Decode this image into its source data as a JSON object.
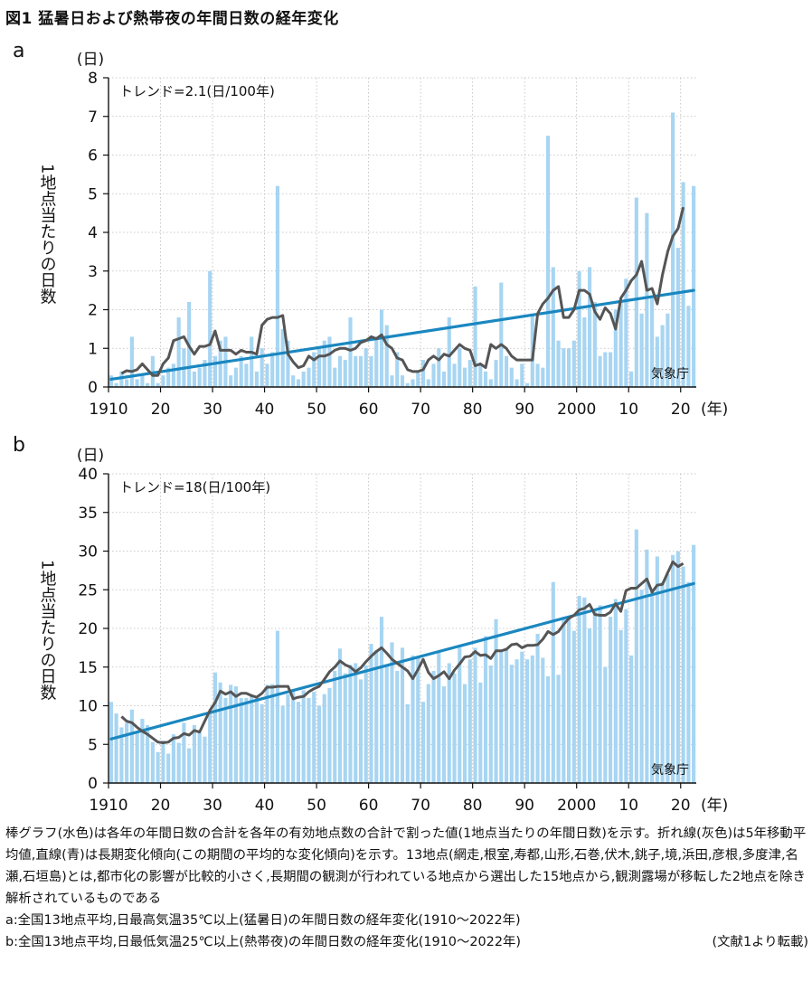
{
  "figure": {
    "title": "図1 猛暑日および熱帯夜の年間日数の経年変化"
  },
  "charts": {
    "common": {
      "bar_color": "#a7d5f2",
      "ma_color": "#555555",
      "trend_color": "#1a87c0",
      "ylabel": "1地点当たりの日数",
      "yunit": "(日)",
      "xunit": "(年)",
      "source_label": "気象庁",
      "x_tick_labels": [
        "1910",
        "20",
        "30",
        "40",
        "50",
        "60",
        "70",
        "80",
        "90",
        "2000",
        "10",
        "20"
      ]
    }
  },
  "chart_data": [
    {
      "panel": "a",
      "type": "bar",
      "trend_label": "トレンド=2.1(日/100年)",
      "xlim": [
        1910,
        2023
      ],
      "ylim": [
        0,
        8
      ],
      "yticks": [
        "0",
        "1",
        "2",
        "3",
        "4",
        "5",
        "6",
        "7",
        "8"
      ],
      "x": [
        1910,
        1911,
        1912,
        1913,
        1914,
        1915,
        1916,
        1917,
        1918,
        1919,
        1920,
        1921,
        1922,
        1923,
        1924,
        1925,
        1926,
        1927,
        1928,
        1929,
        1930,
        1931,
        1932,
        1933,
        1934,
        1935,
        1936,
        1937,
        1938,
        1939,
        1940,
        1941,
        1942,
        1943,
        1944,
        1945,
        1946,
        1947,
        1948,
        1949,
        1950,
        1951,
        1952,
        1953,
        1954,
        1955,
        1956,
        1957,
        1958,
        1959,
        1960,
        1961,
        1962,
        1963,
        1964,
        1965,
        1966,
        1967,
        1968,
        1969,
        1970,
        1971,
        1972,
        1973,
        1974,
        1975,
        1976,
        1977,
        1978,
        1979,
        1980,
        1981,
        1982,
        1983,
        1984,
        1985,
        1986,
        1987,
        1988,
        1989,
        1990,
        1991,
        1992,
        1993,
        1994,
        1995,
        1996,
        1997,
        1998,
        1999,
        2000,
        2001,
        2002,
        2003,
        2004,
        2005,
        2006,
        2007,
        2008,
        2009,
        2010,
        2011,
        2012,
        2013,
        2014,
        2015,
        2016,
        2017,
        2018,
        2019,
        2020,
        2021,
        2022
      ],
      "values": [
        0.3,
        0.1,
        0.4,
        0.2,
        1.3,
        0.2,
        0.3,
        0.1,
        0.8,
        0.1,
        0.3,
        0.5,
        0.6,
        1.8,
        1.0,
        2.2,
        0.4,
        0.5,
        0.7,
        3.0,
        0.8,
        1.2,
        1.3,
        0.3,
        0.5,
        0.8,
        0.6,
        1.3,
        0.4,
        1.0,
        0.6,
        0.9,
        5.2,
        1.5,
        1.2,
        0.3,
        0.2,
        0.4,
        0.5,
        0.9,
        1.0,
        1.2,
        1.3,
        0.5,
        0.8,
        0.7,
        1.8,
        0.8,
        0.8,
        1.0,
        0.8,
        1.3,
        2.0,
        1.6,
        0.3,
        0.9,
        0.3,
        0.1,
        0.2,
        0.4,
        0.7,
        0.2,
        0.6,
        1.0,
        0.4,
        1.8,
        0.6,
        1.0,
        0.5,
        0.7,
        2.6,
        0.6,
        0.4,
        0.2,
        0.7,
        2.7,
        0.8,
        0.5,
        0.2,
        0.6,
        0.1,
        1.9,
        0.6,
        0.5,
        6.5,
        3.1,
        1.2,
        1.0,
        1.0,
        1.2,
        3.0,
        1.8,
        3.1,
        2.2,
        0.8,
        0.9,
        0.9,
        2.0,
        2.2,
        2.8,
        0.4,
        4.9,
        1.9,
        4.5,
        2.3,
        1.3,
        1.6,
        1.9,
        7.1,
        3.6,
        5.3,
        2.1,
        5.2
      ],
      "ma_x": [
        1912,
        1913,
        1914,
        1915,
        1916,
        1917,
        1918,
        1919,
        1920,
        1921,
        1922,
        1923,
        1924,
        1925,
        1926,
        1927,
        1928,
        1929,
        1930,
        1931,
        1932,
        1933,
        1934,
        1935,
        1936,
        1937,
        1938,
        1939,
        1940,
        1941,
        1942,
        1943,
        1944,
        1945,
        1946,
        1947,
        1948,
        1949,
        1950,
        1951,
        1952,
        1953,
        1954,
        1955,
        1956,
        1957,
        1958,
        1959,
        1960,
        1961,
        1962,
        1963,
        1964,
        1965,
        1966,
        1967,
        1968,
        1969,
        1970,
        1971,
        1972,
        1973,
        1974,
        1975,
        1976,
        1977,
        1978,
        1979,
        1980,
        1981,
        1982,
        1983,
        1984,
        1985,
        1986,
        1987,
        1988,
        1989,
        1990,
        1991,
        1992,
        1993,
        1994,
        1995,
        1996,
        1997,
        1998,
        1999,
        2000,
        2001,
        2002,
        2003,
        2004,
        2005,
        2006,
        2007,
        2008,
        2009,
        2010,
        2011,
        2012,
        2013,
        2014,
        2015,
        2016,
        2017,
        2018,
        2019,
        2020
      ],
      "ma_values": [
        0.35,
        0.42,
        0.4,
        0.45,
        0.6,
        0.45,
        0.3,
        0.3,
        0.6,
        0.75,
        1.2,
        1.25,
        1.3,
        1.05,
        0.85,
        1.05,
        1.05,
        1.1,
        1.45,
        0.95,
        0.95,
        0.95,
        0.85,
        0.95,
        0.9,
        0.9,
        0.85,
        1.6,
        1.75,
        1.8,
        1.8,
        1.85,
        0.85,
        0.65,
        0.5,
        0.55,
        0.8,
        0.7,
        0.8,
        0.8,
        0.85,
        0.95,
        1.0,
        1.0,
        0.95,
        1.0,
        1.15,
        1.2,
        1.3,
        1.25,
        1.35,
        1.1,
        1.0,
        0.75,
        0.7,
        0.45,
        0.4,
        0.4,
        0.45,
        0.7,
        0.8,
        0.7,
        0.85,
        0.8,
        0.95,
        1.1,
        1.0,
        0.95,
        0.55,
        0.6,
        0.5,
        1.1,
        1.0,
        1.1,
        1.0,
        0.8,
        0.7,
        0.7,
        0.7,
        0.7,
        1.9,
        2.15,
        2.3,
        2.5,
        2.6,
        1.8,
        1.8,
        2.0,
        2.5,
        2.5,
        2.4,
        1.95,
        1.75,
        2.05,
        1.9,
        1.5,
        2.3,
        2.5,
        2.75,
        2.9,
        3.25,
        2.5,
        2.55,
        2.15,
        2.9,
        3.5,
        3.9,
        4.1,
        4.65
      ],
      "trend": {
        "x": [
          1910,
          2022
        ],
        "y": [
          0.2,
          2.5
        ]
      }
    },
    {
      "panel": "b",
      "type": "bar",
      "trend_label": "トレンド=18(日/100年)",
      "xlim": [
        1910,
        2023
      ],
      "ylim": [
        0,
        40
      ],
      "yticks": [
        "0",
        "5",
        "10",
        "15",
        "20",
        "25",
        "30",
        "35",
        "40"
      ],
      "x": [
        1910,
        1911,
        1912,
        1913,
        1914,
        1915,
        1916,
        1917,
        1918,
        1919,
        1920,
        1921,
        1922,
        1923,
        1924,
        1925,
        1926,
        1927,
        1928,
        1929,
        1930,
        1931,
        1932,
        1933,
        1934,
        1935,
        1936,
        1937,
        1938,
        1939,
        1940,
        1941,
        1942,
        1943,
        1944,
        1945,
        1946,
        1947,
        1948,
        1949,
        1950,
        1951,
        1952,
        1953,
        1954,
        1955,
        1956,
        1957,
        1958,
        1959,
        1960,
        1961,
        1962,
        1963,
        1964,
        1965,
        1966,
        1967,
        1968,
        1969,
        1970,
        1971,
        1972,
        1973,
        1974,
        1975,
        1976,
        1977,
        1978,
        1979,
        1980,
        1981,
        1982,
        1983,
        1984,
        1985,
        1986,
        1987,
        1988,
        1989,
        1990,
        1991,
        1992,
        1993,
        1994,
        1995,
        1996,
        1997,
        1998,
        1999,
        2000,
        2001,
        2002,
        2003,
        2004,
        2005,
        2006,
        2007,
        2008,
        2009,
        2010,
        2011,
        2012,
        2013,
        2014,
        2015,
        2016,
        2017,
        2018,
        2019,
        2020,
        2021,
        2022
      ],
      "values": [
        10.5,
        9.0,
        7.2,
        7.8,
        9.5,
        6.5,
        8.3,
        7.5,
        5.3,
        4.0,
        5.5,
        3.8,
        6.3,
        5.2,
        7.8,
        4.5,
        7.5,
        6.5,
        6.0,
        9.0,
        14.3,
        13.0,
        11.0,
        12.7,
        12.5,
        11.0,
        11.0,
        11.5,
        11.0,
        10.2,
        12.7,
        12.8,
        19.7,
        10.0,
        11.5,
        11.8,
        10.5,
        12.0,
        11.0,
        11.8,
        10.0,
        11.5,
        12.3,
        14.5,
        17.4,
        14.2,
        15.3,
        15.5,
        13.4,
        15.2,
        18.0,
        17.2,
        21.5,
        15.3,
        18.2,
        14.5,
        17.5,
        10.2,
        16.5,
        16.2,
        10.5,
        12.8,
        14.5,
        17.0,
        12.5,
        15.5,
        14.2,
        17.5,
        12.8,
        16.0,
        17.5,
        13.0,
        19.0,
        15.2,
        21.2,
        17.0,
        17.5,
        15.3,
        16.0,
        17.0,
        16.0,
        16.5,
        19.3,
        16.2,
        13.8,
        26.0,
        14.0,
        21.5,
        21.5,
        19.7,
        24.2,
        24.0,
        20.0,
        22.5,
        23.0,
        15.0,
        21.5,
        23.8,
        19.8,
        22.5,
        16.5,
        32.8,
        25.0,
        30.2,
        25.0,
        29.3,
        26.0,
        27.0,
        29.5,
        30.0,
        28.0,
        26.0,
        30.8
      ],
      "ma_x": [
        1912,
        1913,
        1914,
        1915,
        1916,
        1917,
        1918,
        1919,
        1920,
        1921,
        1922,
        1923,
        1924,
        1925,
        1926,
        1927,
        1928,
        1929,
        1930,
        1931,
        1932,
        1933,
        1934,
        1935,
        1936,
        1937,
        1938,
        1939,
        1940,
        1941,
        1942,
        1943,
        1944,
        1945,
        1946,
        1947,
        1948,
        1949,
        1950,
        1951,
        1952,
        1953,
        1954,
        1955,
        1956,
        1957,
        1958,
        1959,
        1960,
        1961,
        1962,
        1963,
        1964,
        1965,
        1966,
        1967,
        1968,
        1969,
        1970,
        1971,
        1972,
        1973,
        1974,
        1975,
        1976,
        1977,
        1978,
        1979,
        1980,
        1981,
        1982,
        1983,
        1984,
        1985,
        1986,
        1987,
        1988,
        1989,
        1990,
        1991,
        1992,
        1993,
        1994,
        1995,
        1996,
        1997,
        1998,
        1999,
        2000,
        2001,
        2002,
        2003,
        2004,
        2005,
        2006,
        2007,
        2008,
        2009,
        2010,
        2011,
        2012,
        2013,
        2014,
        2015,
        2016,
        2017,
        2018,
        2019,
        2020
      ],
      "ma_values": [
        8.6,
        8.0,
        7.8,
        7.2,
        6.7,
        6.3,
        5.8,
        5.3,
        5.2,
        5.3,
        5.8,
        5.9,
        6.4,
        6.2,
        6.8,
        6.6,
        8.0,
        9.4,
        10.4,
        11.9,
        11.5,
        11.8,
        11.2,
        11.6,
        11.6,
        11.3,
        11.1,
        11.6,
        12.4,
        12.4,
        12.5,
        12.5,
        12.5,
        10.9,
        11.1,
        11.2,
        11.8,
        12.2,
        12.5,
        13.4,
        14.4,
        15.0,
        15.8,
        15.3,
        15.0,
        14.4,
        14.9,
        15.7,
        16.4,
        17.0,
        17.5,
        16.8,
        16.0,
        15.5,
        15.0,
        14.5,
        13.5,
        14.7,
        16.0,
        14.3,
        13.5,
        13.9,
        14.4,
        13.5,
        14.6,
        15.4,
        16.3,
        16.4,
        17.0,
        16.5,
        16.6,
        16.1,
        17.1,
        17.1,
        17.3,
        17.9,
        18.0,
        17.5,
        17.8,
        17.8,
        17.9,
        18.6,
        19.6,
        19.2,
        19.6,
        20.5,
        21.3,
        21.7,
        22.4,
        22.6,
        23.1,
        21.8,
        21.7,
        21.7,
        22.1,
        23.2,
        22.2,
        24.9,
        25.2,
        25.2,
        25.8,
        26.4,
        24.7,
        25.6,
        25.7,
        27.2,
        28.6,
        28.0,
        28.4
      ],
      "trend": {
        "x": [
          1910,
          2022
        ],
        "y": [
          5.7,
          25.8
        ]
      }
    }
  ],
  "panel_labels": {
    "a": "a",
    "b": "b"
  },
  "caption": {
    "p1": "棒グラフ(水色)は各年の年間日数の合計を各年の有効地点数の合計で割った値(1地点当たりの年間日数)を示す。折れ線(灰色)は5年移動平均値,直線(青)は長期変化傾向(この期間の平均的な変化傾向)を示す。13地点(網走,根室,寿都,山形,石巻,伏木,銚子,境,浜田,彦根,多度津,名瀬,石垣島)とは,都市化の影響が比較的小さく,長期間の観測が行われている地点から選出した15地点から,観測露場が移転した2地点を除き解析されているものである",
    "p2": "a:全国13地点平均,日最高気温35℃以上(猛暑日)の年間日数の経年変化(1910〜2022年)",
    "p3": "b:全国13地点平均,日最低気温25℃以上(熱帯夜)の年間日数の経年変化(1910〜2022年)",
    "source": "(文献1より転載)"
  }
}
